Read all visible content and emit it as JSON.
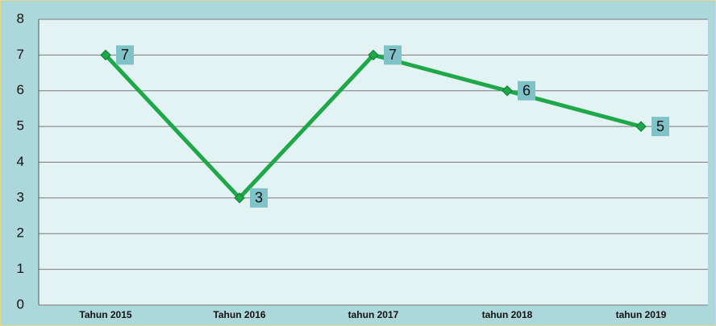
{
  "chart_data": {
    "type": "line",
    "categories": [
      "Tahun 2015",
      "Tahun 2016",
      "tahun 2017",
      "tahun 2018",
      "tahun 2019"
    ],
    "values": [
      7,
      3,
      7,
      6,
      5
    ],
    "color": "#1fa84a",
    "ylim": [
      0,
      8
    ],
    "yticks": [
      0,
      1,
      2,
      3,
      4,
      5,
      6,
      7,
      8
    ],
    "grid": true,
    "data_labels": true
  }
}
